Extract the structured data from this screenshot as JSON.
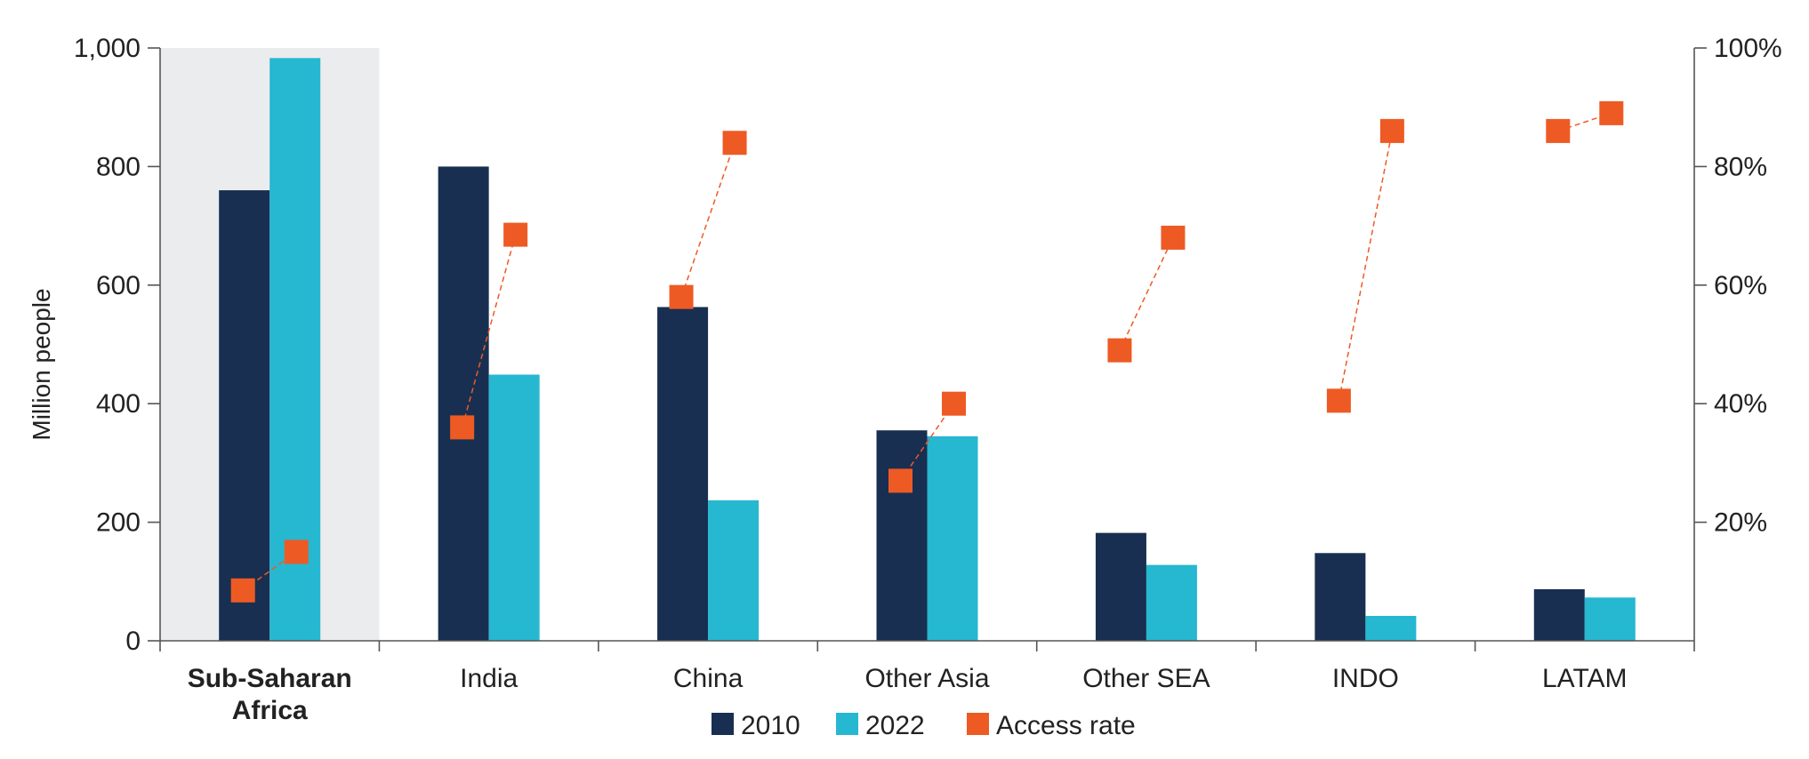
{
  "chart_data": {
    "type": "bar",
    "categories": [
      "Sub-Saharan Africa",
      "India",
      "China",
      "Other Asia",
      "Other SEA",
      "INDO",
      "LATAM"
    ],
    "category_lines": [
      [
        "Sub-Saharan",
        "Africa"
      ],
      [
        "India"
      ],
      [
        "China"
      ],
      [
        "Other Asia"
      ],
      [
        "Other SEA"
      ],
      [
        "INDO"
      ],
      [
        "LATAM"
      ]
    ],
    "highlighted_category": "Sub-Saharan Africa",
    "series": [
      {
        "name": "2010",
        "kind": "bar",
        "axis": "left",
        "color": "#182f51",
        "values": [
          760,
          800,
          563,
          355,
          182,
          148,
          87
        ]
      },
      {
        "name": "2022",
        "kind": "bar",
        "axis": "left",
        "color": "#26b7d1",
        "values": [
          983,
          449,
          237,
          345,
          128,
          42,
          73
        ]
      }
    ],
    "access_rate": {
      "name": "Access rate",
      "axis": "right",
      "color": "#ee5a24",
      "unit": "%",
      "values_2010": [
        8.5,
        36,
        58,
        27,
        49,
        40.5,
        86
      ],
      "values_2022": [
        15,
        68.5,
        84,
        40,
        68,
        86,
        89
      ]
    },
    "ylabel": "Million people",
    "ylim": [
      0,
      1000
    ],
    "yticks": [
      0,
      200,
      400,
      600,
      800,
      1000
    ],
    "ytick_labels": [
      "0",
      "200",
      "400",
      "600",
      "800",
      "1,000"
    ],
    "y2lim": [
      0,
      100
    ],
    "y2ticks": [
      20,
      40,
      60,
      80,
      100
    ],
    "y2tick_labels": [
      "20%",
      "40%",
      "60%",
      "80%",
      "100%"
    ],
    "legend": {
      "position": "bottom",
      "items": [
        {
          "label": "2010",
          "color": "#182f51"
        },
        {
          "label": "2022",
          "color": "#26b7d1"
        },
        {
          "label": "Access rate",
          "color": "#ee5a24"
        }
      ]
    },
    "grid": false
  }
}
